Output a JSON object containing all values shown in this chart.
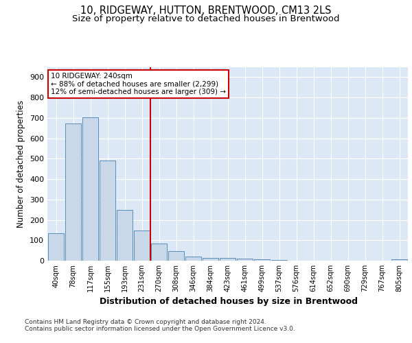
{
  "title1": "10, RIDGEWAY, HUTTON, BRENTWOOD, CM13 2LS",
  "title2": "Size of property relative to detached houses in Brentwood",
  "xlabel": "Distribution of detached houses by size in Brentwood",
  "ylabel": "Number of detached properties",
  "categories": [
    "40sqm",
    "78sqm",
    "117sqm",
    "155sqm",
    "193sqm",
    "231sqm",
    "270sqm",
    "308sqm",
    "346sqm",
    "384sqm",
    "423sqm",
    "461sqm",
    "499sqm",
    "537sqm",
    "576sqm",
    "614sqm",
    "652sqm",
    "690sqm",
    "729sqm",
    "767sqm",
    "805sqm"
  ],
  "values": [
    133,
    672,
    703,
    492,
    250,
    148,
    85,
    47,
    20,
    15,
    14,
    10,
    6,
    2,
    1,
    1,
    0,
    0,
    0,
    0,
    8
  ],
  "bar_color": "#c8d8e8",
  "bar_edge_color": "#5b8db8",
  "vline_x_index": 5,
  "vline_color": "#cc0000",
  "annotation_line1": "10 RIDGEWAY: 240sqm",
  "annotation_line2": "← 88% of detached houses are smaller (2,299)",
  "annotation_line3": "12% of semi-detached houses are larger (309) →",
  "annotation_box_color": "#ffffff",
  "annotation_box_edge": "#cc0000",
  "annotation_fontsize": 7.5,
  "ylim": [
    0,
    950
  ],
  "yticks": [
    0,
    100,
    200,
    300,
    400,
    500,
    600,
    700,
    800,
    900
  ],
  "footer": "Contains HM Land Registry data © Crown copyright and database right 2024.\nContains public sector information licensed under the Open Government Licence v3.0.",
  "title1_fontsize": 10.5,
  "title2_fontsize": 9.5,
  "xlabel_fontsize": 9,
  "ylabel_fontsize": 8.5,
  "grid_color": "#ffffff",
  "background_color": "#dce8f5",
  "fig_background": "#ffffff"
}
